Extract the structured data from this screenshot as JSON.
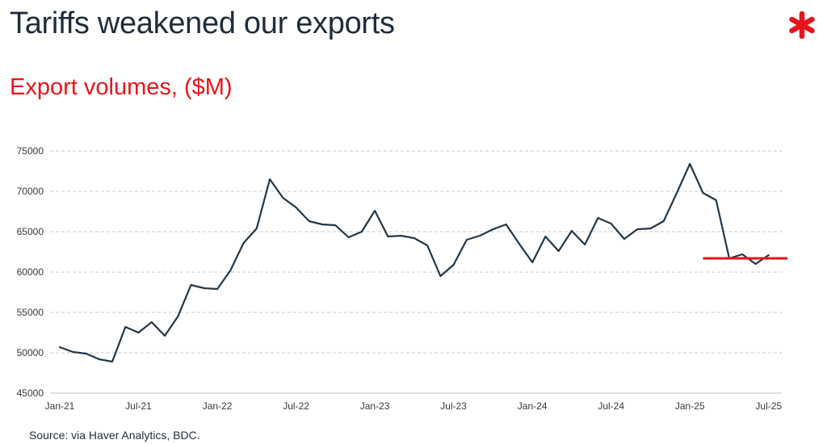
{
  "header": {
    "title": "Tariffs weakened our exports",
    "logo_icon": "asterisk-logo-icon",
    "logo_color": "#e8141c"
  },
  "chart_data": {
    "type": "line",
    "title": "Export volumes, ($M)",
    "xlabel": "",
    "ylabel": "",
    "ylim": [
      45000,
      75000
    ],
    "yticks": [
      45000,
      50000,
      55000,
      60000,
      65000,
      70000,
      75000
    ],
    "x_tick_labels": [
      "Jan-21",
      "Jul-21",
      "Jan-22",
      "Jul-22",
      "Jan-23",
      "Jul-23",
      "Jan-24",
      "Jul-24",
      "Jan-25",
      "Jul-25"
    ],
    "grid": "horizontal-dashed",
    "line_color": "#253746",
    "series": [
      {
        "x": [
          "Jan-21",
          "Feb-21",
          "Mar-21",
          "Apr-21",
          "May-21",
          "Jun-21",
          "Jul-21",
          "Aug-21",
          "Sep-21",
          "Oct-21",
          "Nov-21",
          "Dec-21",
          "Jan-22",
          "Feb-22",
          "Mar-22",
          "Apr-22",
          "May-22",
          "Jun-22",
          "Jul-22",
          "Aug-22",
          "Sep-22",
          "Oct-22",
          "Nov-22",
          "Dec-22",
          "Jan-23",
          "Feb-23",
          "Mar-23",
          "Apr-23",
          "May-23",
          "Jun-23",
          "Jul-23",
          "Aug-23",
          "Sep-23",
          "Oct-23",
          "Nov-23",
          "Dec-23",
          "Jan-24",
          "Feb-24",
          "Mar-24",
          "Apr-24",
          "May-24",
          "Jun-24",
          "Jul-24",
          "Aug-24",
          "Sep-24",
          "Oct-24",
          "Nov-24",
          "Dec-24",
          "Jan-25",
          "Feb-25",
          "Mar-25",
          "Apr-25",
          "May-25",
          "Jun-25",
          "Jul-25"
        ],
        "values": [
          50700,
          50100,
          49900,
          49200,
          48900,
          53200,
          52500,
          53800,
          52100,
          54500,
          58400,
          58000,
          57900,
          60200,
          63600,
          65400,
          71500,
          69200,
          68000,
          66300,
          65900,
          65800,
          64300,
          65000,
          67600,
          64400,
          64500,
          64200,
          63300,
          59500,
          60900,
          64000,
          64500,
          65300,
          65900,
          63500,
          61200,
          64400,
          62600,
          65100,
          63400,
          66700,
          66000,
          64100,
          65300,
          65400,
          66300,
          69800,
          73400,
          69800,
          68900,
          61700,
          62200,
          61000,
          62100
        ]
      }
    ],
    "reference_line": {
      "value": 61700,
      "from": "Feb-25",
      "to": "Aug-25",
      "color": "#e8141c"
    }
  },
  "footer": {
    "source": "Source: via Haver Analytics, BDC."
  }
}
